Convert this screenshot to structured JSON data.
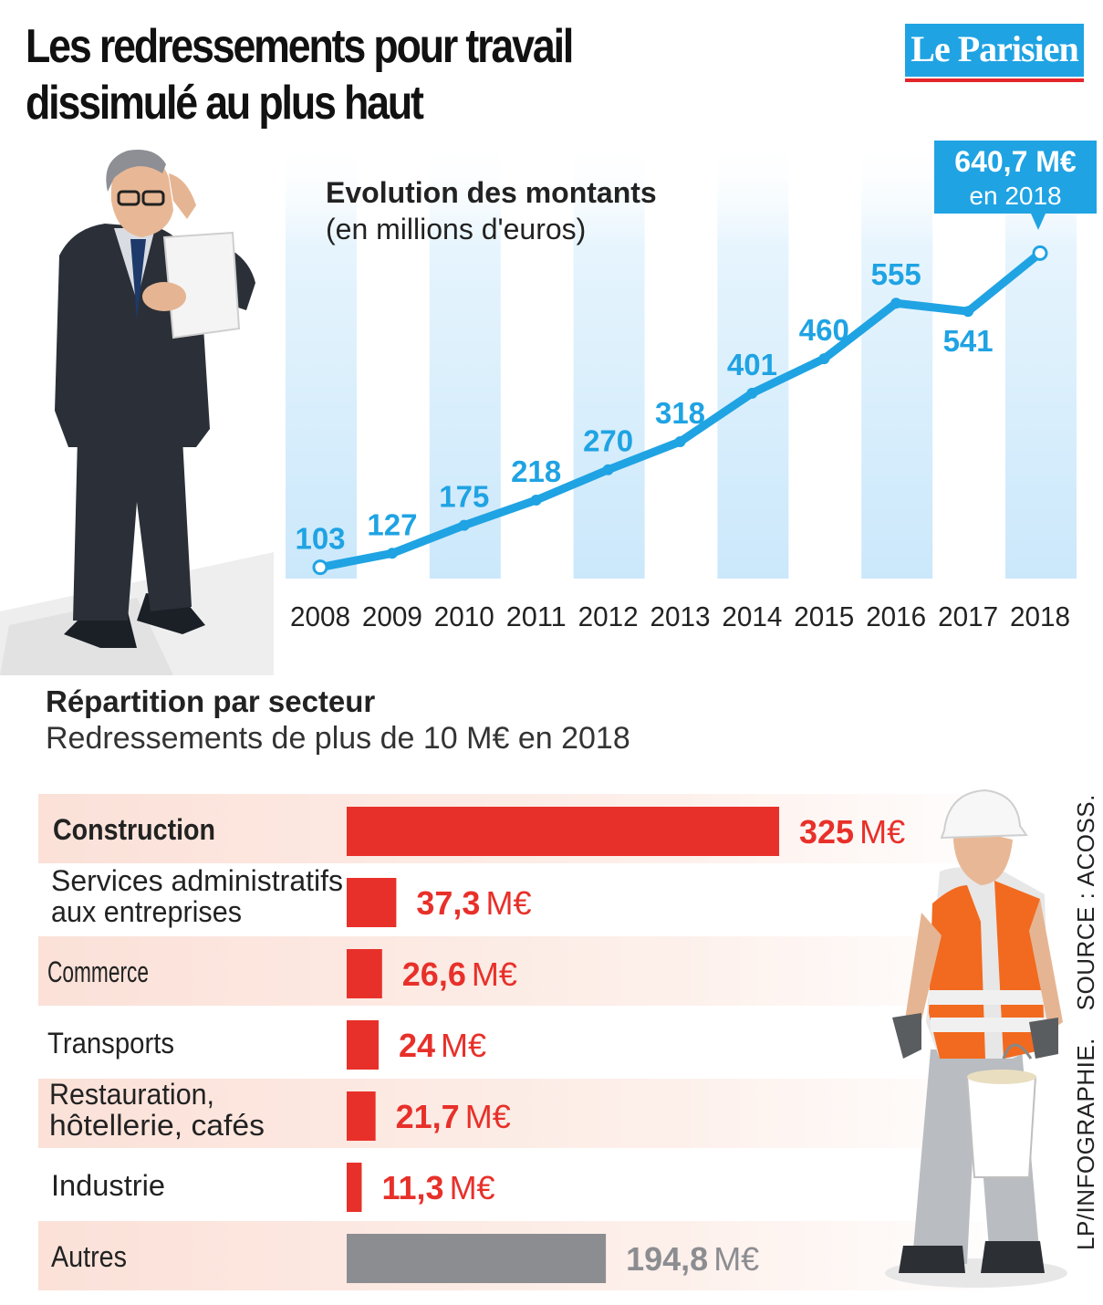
{
  "title": "Les redressements pour travail dissimulé au plus haut",
  "brand": "Le Parisien",
  "colors": {
    "blue": "#1fa3e3",
    "red": "#e8302a",
    "grey": "#8c8d91",
    "band": "#d5ecfb"
  },
  "chart_data": [
    {
      "type": "line",
      "title": "Evolution des montants",
      "subtitle": "(en millions d'euros)",
      "x": [
        "2008",
        "2009",
        "2010",
        "2011",
        "2012",
        "2013",
        "2014",
        "2015",
        "2016",
        "2017",
        "2018"
      ],
      "series": [
        {
          "values": [
            103,
            127,
            175,
            218,
            270,
            318,
            401,
            460,
            555,
            541,
            640.7
          ]
        }
      ],
      "data_labels": [
        "103",
        "127",
        "175",
        "218",
        "270",
        "318",
        "401",
        "460",
        "555",
        "541"
      ],
      "callout": {
        "value": "640,7 M€",
        "text": "en 2018"
      },
      "ylim": [
        90,
        660
      ]
    },
    {
      "type": "bar",
      "orientation": "horizontal",
      "title": "Répartition par secteur",
      "subtitle": "Redressements de plus de 10 M€ en 2018",
      "unit": "M€",
      "categories": [
        [
          "Construction"
        ],
        [
          "Services administratifs",
          "aux entreprises"
        ],
        [
          "Commerce"
        ],
        [
          "Transports"
        ],
        [
          "Restauration,",
          "hôtellerie, cafés"
        ],
        [
          "Industrie"
        ],
        [
          "Autres"
        ]
      ],
      "values": [
        325,
        37.3,
        26.6,
        24,
        21.7,
        11.3,
        194.8
      ],
      "value_labels": [
        "325",
        "37,3",
        "26,6",
        "24",
        "21,7",
        "11,3",
        "194,8"
      ]
    }
  ],
  "source": {
    "credit": "LP/INFOGRAPHIE.",
    "origin": "SOURCE : ACOSS."
  }
}
